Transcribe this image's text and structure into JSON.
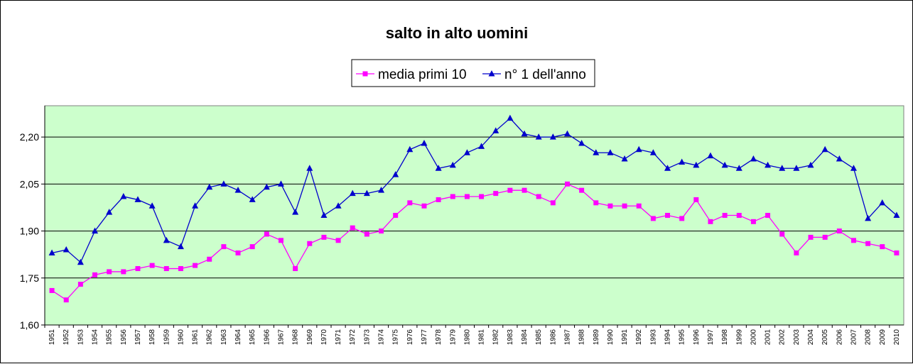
{
  "chart_data": {
    "type": "line",
    "title": "salto in alto uomini",
    "xlabel": "",
    "ylabel": "",
    "ylim": [
      1.6,
      2.3
    ],
    "yticks": [
      "1,60",
      "1,75",
      "1,90",
      "2,05",
      "2,20"
    ],
    "grid": "horizontal",
    "legend_position": "top",
    "x": [
      "1951",
      "1952",
      "1953",
      "1954",
      "1955",
      "1956",
      "1957",
      "1958",
      "1959",
      "1960",
      "1961",
      "1962",
      "1963",
      "1964",
      "1965",
      "1966",
      "1967",
      "1968",
      "1969",
      "1970",
      "1971",
      "1972",
      "1973",
      "1974",
      "1975",
      "1976",
      "1977",
      "1978",
      "1979",
      "1980",
      "1981",
      "1982",
      "1983",
      "1984",
      "1985",
      "1986",
      "1987",
      "1988",
      "1989",
      "1990",
      "1991",
      "1992",
      "1993",
      "1994",
      "1995",
      "1996",
      "1997",
      "1998",
      "1999",
      "2000",
      "2001",
      "2002",
      "2003",
      "2004",
      "2005",
      "2006",
      "2007",
      "2008",
      "2009",
      "2010"
    ],
    "series": [
      {
        "name": "media primi 10",
        "color": "#ff00ff",
        "marker": "square",
        "values": [
          1.71,
          1.68,
          1.73,
          1.76,
          1.77,
          1.77,
          1.78,
          1.79,
          1.78,
          1.78,
          1.79,
          1.81,
          1.85,
          1.83,
          1.85,
          1.89,
          1.87,
          1.78,
          1.86,
          1.88,
          1.87,
          1.91,
          1.89,
          1.9,
          1.95,
          1.99,
          1.98,
          2.0,
          2.01,
          2.01,
          2.01,
          2.02,
          2.03,
          2.03,
          2.01,
          1.99,
          2.05,
          2.03,
          1.99,
          1.98,
          1.98,
          1.98,
          1.94,
          1.95,
          1.94,
          2.0,
          1.93,
          1.95,
          1.95,
          1.93,
          1.95,
          1.89,
          1.83,
          1.88,
          1.88,
          1.9,
          1.87,
          1.86,
          1.85,
          1.83
        ]
      },
      {
        "name": "n° 1 dell'anno",
        "color": "#0000cc",
        "marker": "triangle",
        "values": [
          1.83,
          1.84,
          1.8,
          1.9,
          1.96,
          2.01,
          2.0,
          1.98,
          1.87,
          1.85,
          1.98,
          2.04,
          2.05,
          2.03,
          2.0,
          2.04,
          2.05,
          1.96,
          2.1,
          1.95,
          1.98,
          2.02,
          2.02,
          2.03,
          2.08,
          2.16,
          2.18,
          2.1,
          2.11,
          2.15,
          2.17,
          2.22,
          2.26,
          2.21,
          2.2,
          2.2,
          2.21,
          2.18,
          2.15,
          2.15,
          2.13,
          2.16,
          2.15,
          2.1,
          2.12,
          2.11,
          2.14,
          2.11,
          2.1,
          2.13,
          2.11,
          2.1,
          2.1,
          2.11,
          2.16,
          2.13,
          2.1,
          1.94,
          1.99,
          1.95
        ]
      }
    ]
  },
  "colors": {
    "plot_background": "#ccffcc",
    "gridline": "#000000"
  }
}
